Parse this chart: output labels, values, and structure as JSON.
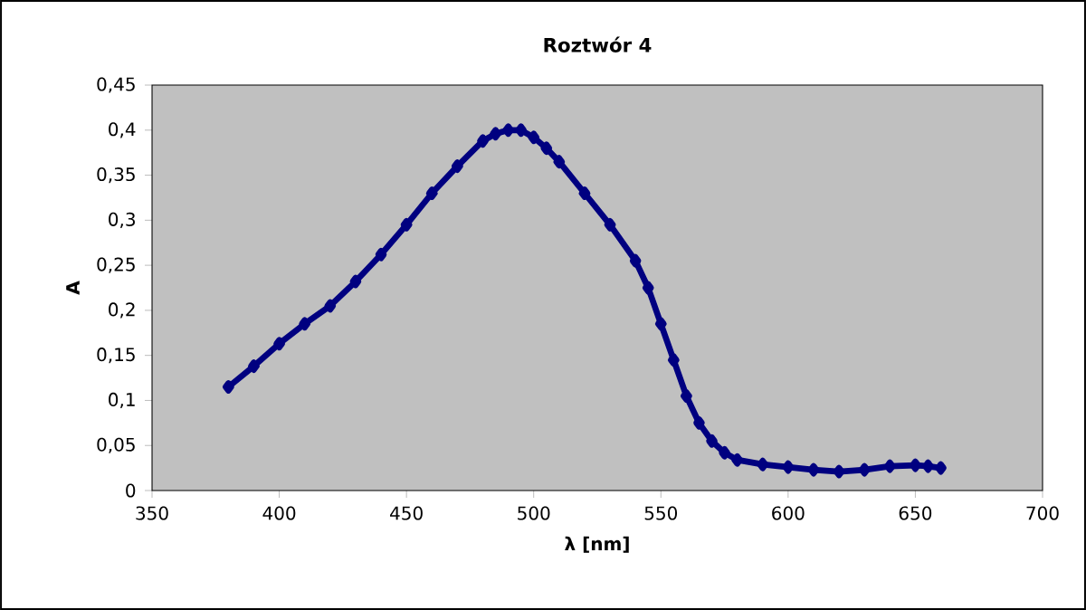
{
  "chart_data": {
    "type": "line",
    "title": "Roztwór 4",
    "xlabel": "λ [nm]",
    "ylabel": "A",
    "xlim": [
      350,
      700
    ],
    "xticks": [
      350,
      400,
      450,
      500,
      550,
      600,
      650,
      700
    ],
    "ylim": [
      0,
      0.45
    ],
    "yticks": [
      {
        "value": 0,
        "label": "0"
      },
      {
        "value": 0.05,
        "label": "0,05"
      },
      {
        "value": 0.1,
        "label": "0,1"
      },
      {
        "value": 0.15,
        "label": "0,15"
      },
      {
        "value": 0.2,
        "label": "0,2"
      },
      {
        "value": 0.25,
        "label": "0,25"
      },
      {
        "value": 0.3,
        "label": "0,3"
      },
      {
        "value": 0.35,
        "label": "0,35"
      },
      {
        "value": 0.4,
        "label": "0,4"
      },
      {
        "value": 0.45,
        "label": "0,45"
      }
    ],
    "grid": false,
    "marker": "diamond",
    "line_style": "solid",
    "series": [
      {
        "color": "#000080",
        "x": [
          380,
          390,
          400,
          410,
          420,
          430,
          440,
          450,
          460,
          470,
          480,
          485,
          490,
          495,
          500,
          505,
          510,
          520,
          530,
          540,
          545,
          550,
          555,
          560,
          565,
          570,
          575,
          580,
          590,
          600,
          610,
          620,
          630,
          640,
          650,
          655,
          660
        ],
        "values": [
          0.115,
          0.138,
          0.163,
          0.185,
          0.205,
          0.232,
          0.262,
          0.295,
          0.33,
          0.36,
          0.388,
          0.396,
          0.4,
          0.4,
          0.392,
          0.38,
          0.365,
          0.33,
          0.295,
          0.255,
          0.225,
          0.185,
          0.145,
          0.105,
          0.075,
          0.055,
          0.042,
          0.034,
          0.029,
          0.026,
          0.023,
          0.021,
          0.023,
          0.027,
          0.028,
          0.027,
          0.025
        ]
      }
    ]
  }
}
